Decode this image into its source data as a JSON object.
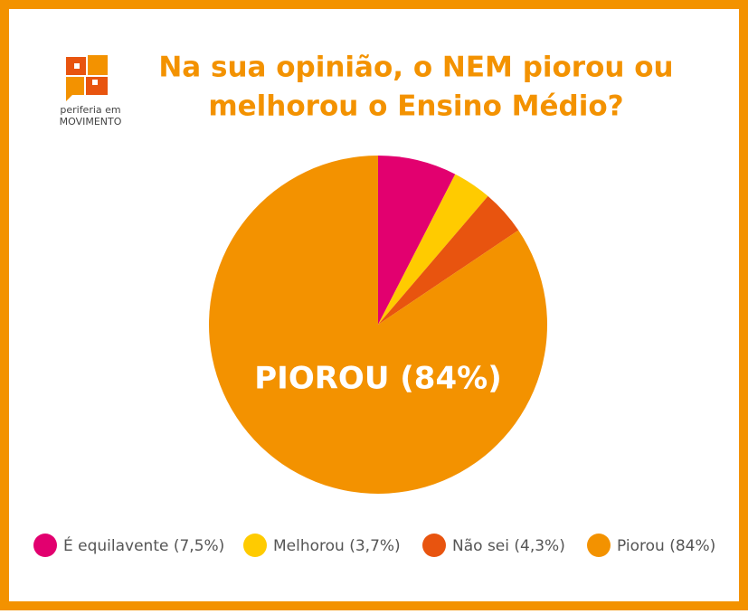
{
  "logo": {
    "line1": "periferia em",
    "line2": "MOVIMENTO"
  },
  "chart_data": {
    "type": "pie",
    "title": [
      "Na sua opinião, o NEM piorou ou",
      "melhorou o Ensino Médio?"
    ],
    "categories": [
      "É equilavente (7,5%)",
      "Melhorou (3,7%)",
      "Não sei (4,3%)",
      "Piorou (84%)"
    ],
    "values": [
      7.5,
      3.7,
      4.3,
      84
    ],
    "colors": [
      "#e2006f",
      "#ffcb00",
      "#e8540f",
      "#f39200"
    ],
    "annotation": "PIOROU (84%)"
  }
}
